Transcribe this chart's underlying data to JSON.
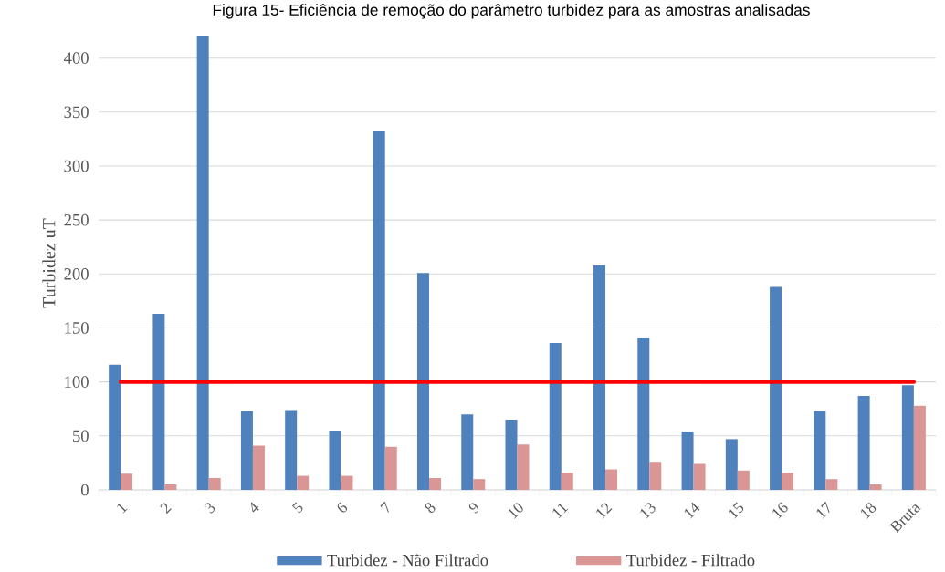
{
  "chart_data": {
    "type": "bar",
    "title": "Figura 15- Eficiência de remoção do parâmetro turbidez para as amostras analisadas",
    "ylabel": "Turbidez uT",
    "categories": [
      "1",
      "2",
      "3",
      "4",
      "5",
      "6",
      "7",
      "8",
      "9",
      "10",
      "11",
      "12",
      "13",
      "14",
      "15",
      "16",
      "17",
      "18",
      "Bruta"
    ],
    "series": [
      {
        "name": "Turbidez - Não Filtrado",
        "color": "#4f81bd",
        "values": [
          116,
          163,
          420,
          73,
          74,
          55,
          332,
          201,
          70,
          65,
          136,
          208,
          141,
          54,
          47,
          188,
          73,
          87,
          97
        ]
      },
      {
        "name": "Turbidez - Filtrado",
        "color": "#d99694",
        "values": [
          15,
          5,
          11,
          41,
          13,
          13,
          40,
          11,
          10,
          42,
          16,
          19,
          26,
          24,
          18,
          16,
          10,
          5,
          78
        ]
      }
    ],
    "ref_lines": [
      {
        "axis": "y",
        "value": 100,
        "color": "#ff0000"
      }
    ],
    "ylim": [
      0,
      420
    ],
    "yticks": [
      0,
      50,
      100,
      150,
      200,
      250,
      300,
      350,
      400
    ],
    "grid": "y",
    "legend": "bottom"
  }
}
